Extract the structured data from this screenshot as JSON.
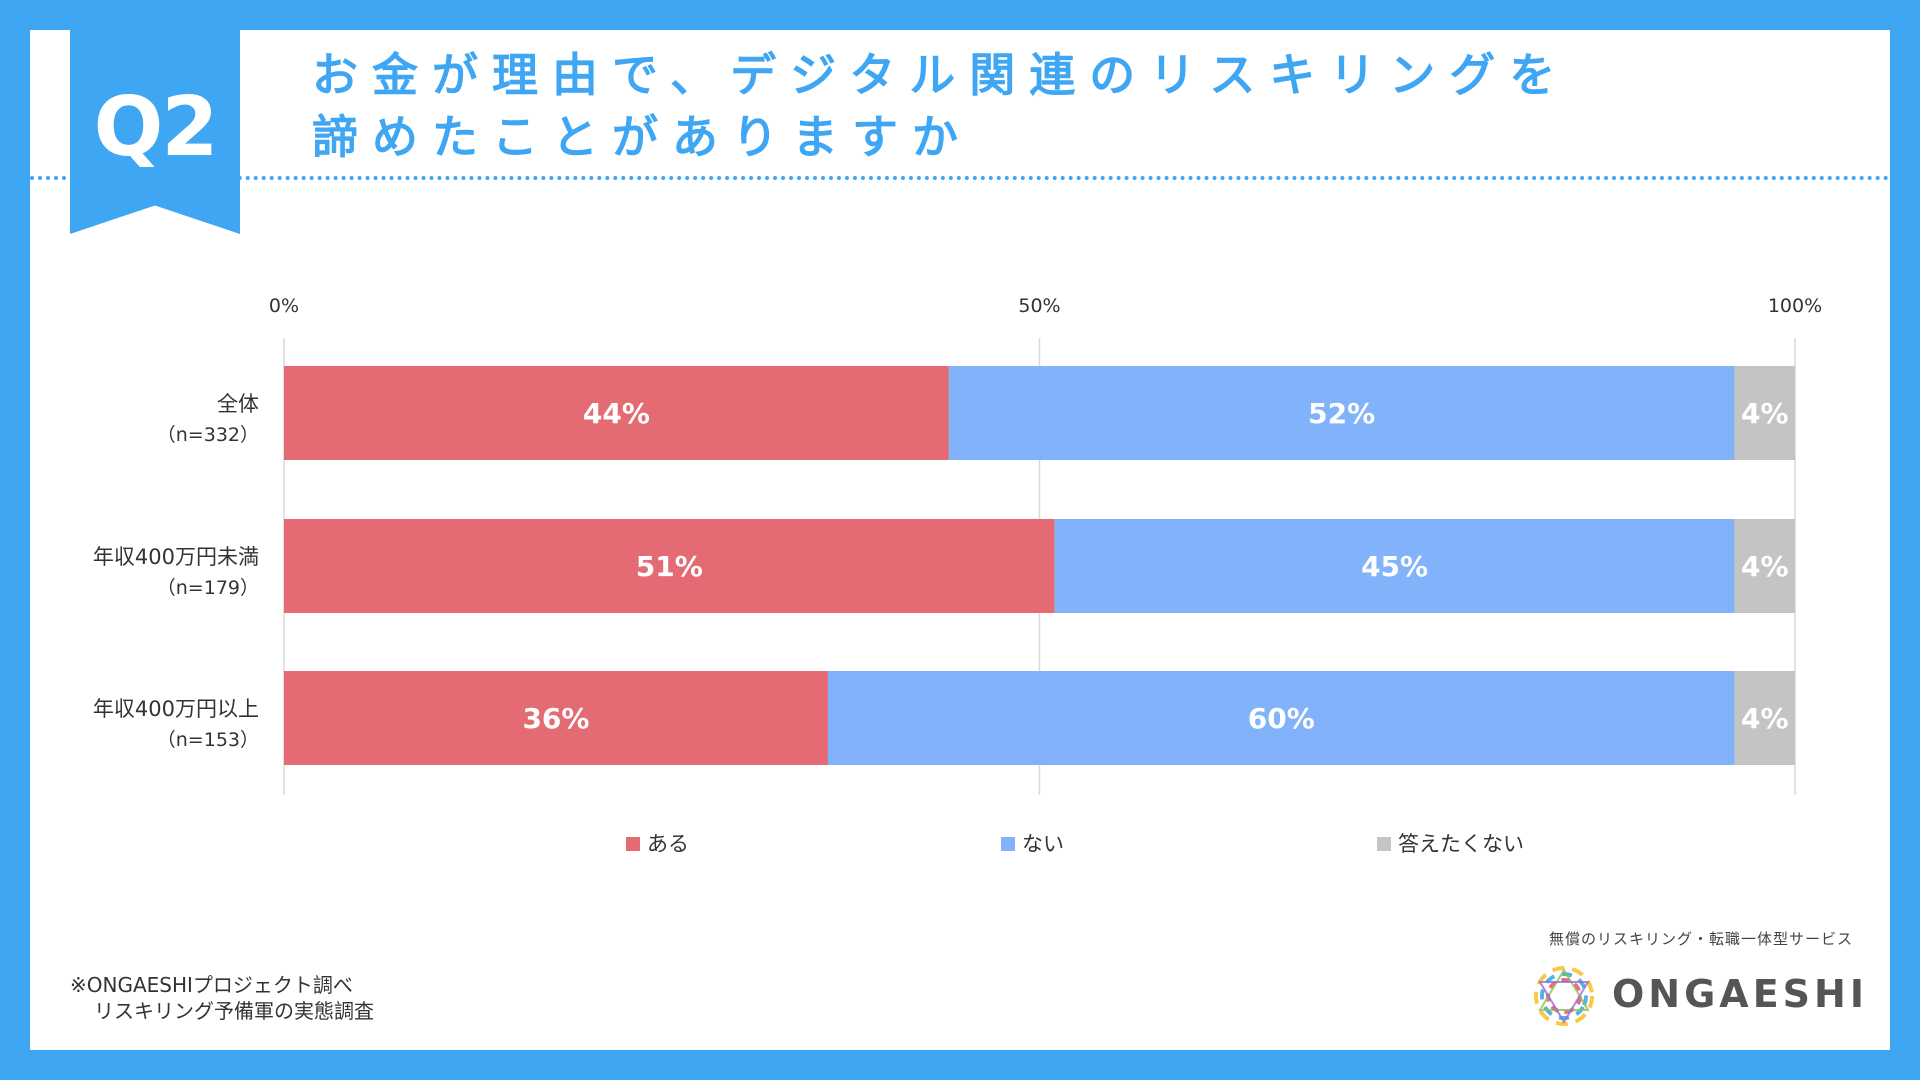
{
  "badge": {
    "label": "Q2"
  },
  "title": {
    "line1": "お金が理由で、デジタル関連のリスキリングを",
    "line2": "諦めたことがありますか"
  },
  "colors": {
    "frame": "#3fa6f4",
    "series_aru": "#e46b74",
    "series_nai": "#82b2fa",
    "series_kotaetakunai": "#c4c4c4"
  },
  "chart_data": {
    "type": "bar",
    "orientation": "horizontal-stacked-100",
    "categories": [
      "全体",
      "年収400万円未満",
      "年収400万円以上"
    ],
    "category_n": [
      "（n=332）",
      "（n=179）",
      "（n=153）"
    ],
    "series": [
      {
        "name": "ある",
        "values": [
          44,
          51,
          36
        ],
        "labels": [
          "44%",
          "51%",
          "36%"
        ]
      },
      {
        "name": "ない",
        "values": [
          52,
          45,
          60
        ],
        "labels": [
          "52%",
          "45%",
          "60%"
        ]
      },
      {
        "name": "答えたくない",
        "values": [
          4,
          4,
          4
        ],
        "labels": [
          "4%",
          "4%",
          "4%"
        ]
      }
    ],
    "xlim": [
      0,
      100
    ],
    "x_ticks": [
      {
        "value": 0,
        "label": "0%"
      },
      {
        "value": 50,
        "label": "50%"
      },
      {
        "value": 100,
        "label": "100%"
      }
    ],
    "grid": true,
    "legend_position": "bottom"
  },
  "source": {
    "line1": "※ONGAESHIプロジェクト調べ",
    "line2": "リスキリング予備軍の実態調査"
  },
  "brand": {
    "tagline": "無償のリスキリング・転職一体型サービス",
    "name": "ONGAESHI"
  }
}
